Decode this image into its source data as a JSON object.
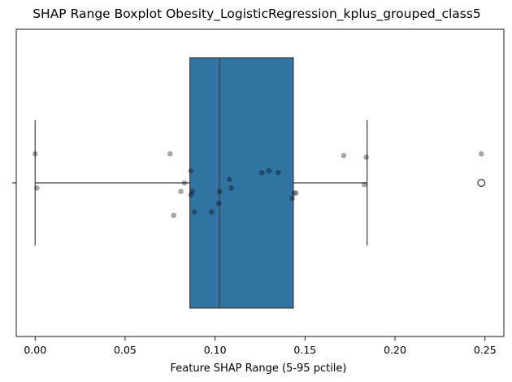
{
  "chart_data": {
    "type": "boxplot",
    "title": "SHAP Range Boxplot Obesity_LogisticRegression_kplus_grouped_class5",
    "xlabel": "Feature SHAP Range (5-95 pctile)",
    "ylabel": "",
    "xlim": [
      -0.0105,
      0.2605
    ],
    "xticks": [
      0.0,
      0.05,
      0.1,
      0.15,
      0.2,
      0.25
    ],
    "xtick_labels": [
      "0.00",
      "0.05",
      "0.10",
      "0.15",
      "0.20",
      "0.25"
    ],
    "box": {
      "whisker_low": 0.0,
      "q1": 0.086,
      "median": 0.1025,
      "q3": 0.1435,
      "whisker_high": 0.1845,
      "outliers": [
        0.248
      ],
      "color": "#3274a1"
    },
    "points": [
      {
        "x": 0.0,
        "y": -0.17
      },
      {
        "x": 0.001,
        "y": 0.03
      },
      {
        "x": 0.075,
        "y": -0.17
      },
      {
        "x": 0.081,
        "y": 0.05
      },
      {
        "x": 0.083,
        "y": 0.0
      },
      {
        "x": 0.0865,
        "y": 0.07
      },
      {
        "x": 0.0865,
        "y": -0.07
      },
      {
        "x": 0.0875,
        "y": 0.05
      },
      {
        "x": 0.077,
        "y": 0.19
      },
      {
        "x": 0.0885,
        "y": 0.17
      },
      {
        "x": 0.098,
        "y": 0.17
      },
      {
        "x": 0.102,
        "y": 0.12
      },
      {
        "x": 0.1025,
        "y": 0.05
      },
      {
        "x": 0.108,
        "y": -0.02
      },
      {
        "x": 0.109,
        "y": 0.03
      },
      {
        "x": 0.126,
        "y": -0.06
      },
      {
        "x": 0.13,
        "y": -0.07
      },
      {
        "x": 0.135,
        "y": -0.06
      },
      {
        "x": 0.143,
        "y": 0.09
      },
      {
        "x": 0.144,
        "y": 0.06
      },
      {
        "x": 0.145,
        "y": 0.06
      },
      {
        "x": 0.1715,
        "y": -0.16
      },
      {
        "x": 0.183,
        "y": 0.01
      },
      {
        "x": 0.184,
        "y": -0.15
      },
      {
        "x": 0.248,
        "y": -0.17
      }
    ],
    "point_color": "#808080",
    "grid": false,
    "legend": "none"
  }
}
